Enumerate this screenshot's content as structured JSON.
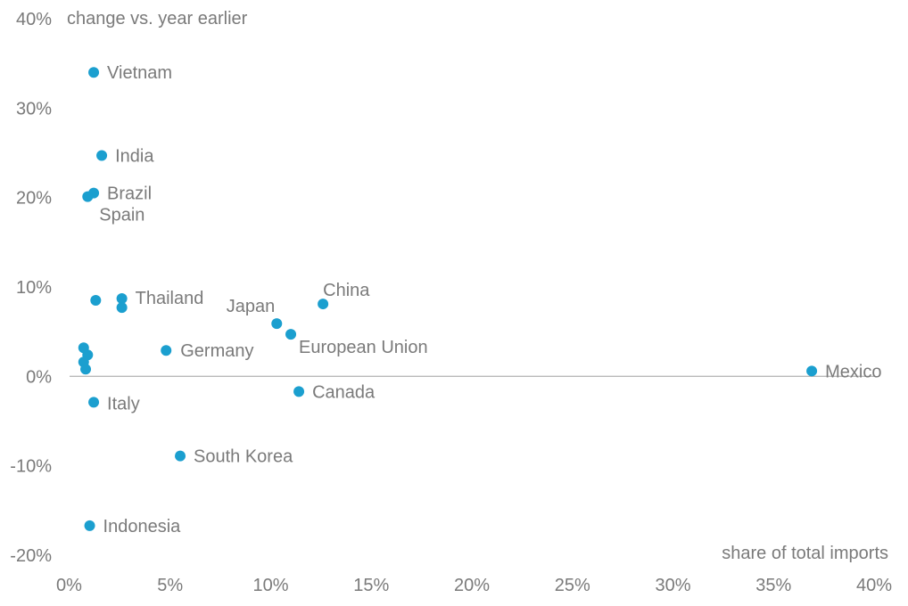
{
  "chart_data": {
    "type": "scatter",
    "ylabel": "change vs. year earlier",
    "xlabel": "share of total imports",
    "xlim": [
      0,
      40
    ],
    "ylim": [
      -20,
      40
    ],
    "xticks": [
      "0%",
      "5%",
      "10%",
      "15%",
      "20%",
      "25%",
      "30%",
      "35%",
      "40%"
    ],
    "yticks": [
      "-20%",
      "-10%",
      "0%",
      "10%",
      "20%",
      "30%",
      "40%"
    ],
    "grid": false,
    "zero_line": true,
    "marker_color": "#1b9fcf",
    "points": [
      {
        "label": "Vietnam",
        "x": 1.2,
        "y": 34.0
      },
      {
        "label": "India",
        "x": 1.6,
        "y": 24.7
      },
      {
        "label": "Brazil",
        "x": 1.2,
        "y": 20.5
      },
      {
        "label": "Spain",
        "x": 0.9,
        "y": 20.1
      },
      {
        "label": "Thailand",
        "x": 2.6,
        "y": 8.7
      },
      {
        "label": "",
        "x": 1.3,
        "y": 8.5
      },
      {
        "label": "",
        "x": 2.6,
        "y": 7.7
      },
      {
        "label": "China",
        "x": 12.6,
        "y": 8.1
      },
      {
        "label": "Japan",
        "x": 10.3,
        "y": 5.9
      },
      {
        "label": "European Union",
        "x": 11.0,
        "y": 4.7
      },
      {
        "label": "Germany",
        "x": 4.8,
        "y": 2.9
      },
      {
        "label": "",
        "x": 0.7,
        "y": 3.2
      },
      {
        "label": "",
        "x": 0.9,
        "y": 2.4
      },
      {
        "label": "",
        "x": 0.7,
        "y": 1.6
      },
      {
        "label": "",
        "x": 0.8,
        "y": 0.8
      },
      {
        "label": "Mexico",
        "x": 36.9,
        "y": 0.6
      },
      {
        "label": "Canada",
        "x": 11.4,
        "y": -1.7
      },
      {
        "label": "Italy",
        "x": 1.2,
        "y": -2.9
      },
      {
        "label": "South Korea",
        "x": 5.5,
        "y": -8.9
      },
      {
        "label": "Indonesia",
        "x": 1.0,
        "y": -16.7
      }
    ]
  }
}
